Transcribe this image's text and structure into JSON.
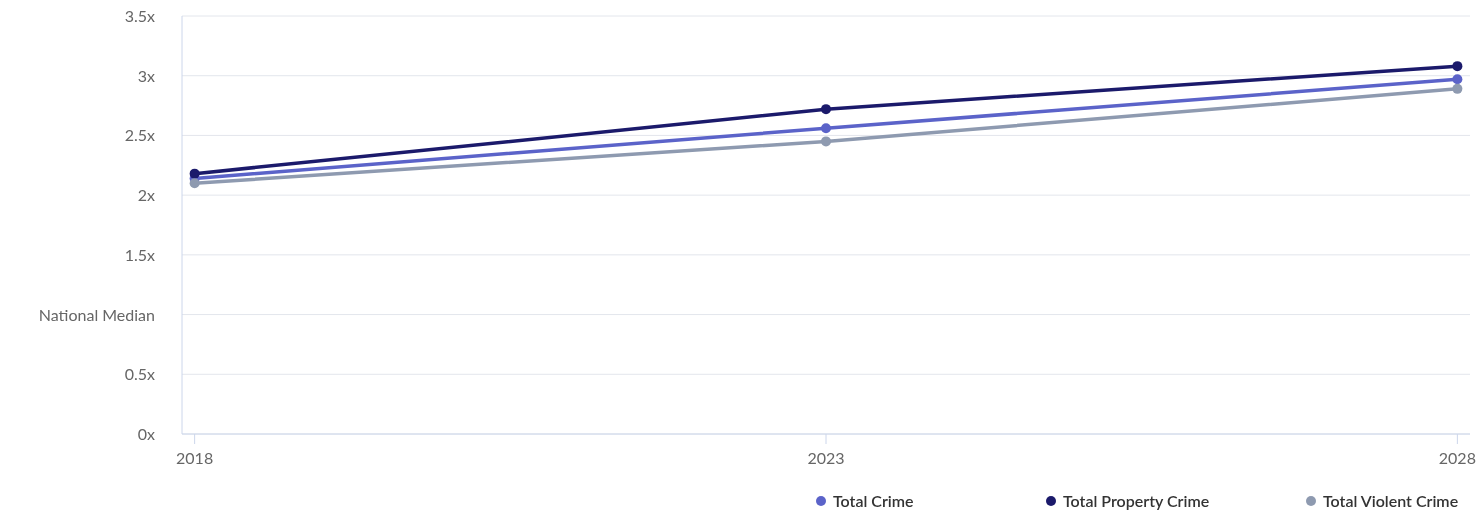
{
  "chart_data": {
    "type": "line",
    "x": [
      2018,
      2023,
      2028
    ],
    "xlim": [
      2017.9,
      2028.1
    ],
    "xticks": [
      2018,
      2023,
      2028
    ],
    "ylim": [
      0,
      3.5
    ],
    "yticks": [
      {
        "value": 0,
        "label": "0x"
      },
      {
        "value": 0.5,
        "label": "0.5x"
      },
      {
        "value": 1,
        "label": "National Median"
      },
      {
        "value": 1.5,
        "label": "1.5x"
      },
      {
        "value": 2,
        "label": "2x"
      },
      {
        "value": 2.5,
        "label": "2.5x"
      },
      {
        "value": 3,
        "label": "3x"
      },
      {
        "value": 3.5,
        "label": "3.5x"
      }
    ],
    "series": [
      {
        "name": "Total Crime",
        "color": "#5b63c9",
        "values": [
          2.14,
          2.56,
          2.97
        ]
      },
      {
        "name": "Total Property Crime",
        "color": "#1b1a6b",
        "values": [
          2.18,
          2.72,
          3.08
        ]
      },
      {
        "name": "Total Violent Crime",
        "color": "#8e9ab0",
        "values": [
          2.1,
          2.45,
          2.89
        ]
      }
    ],
    "grid": "y",
    "legend": "bottom right",
    "marker": "circle",
    "line_style": "solid"
  }
}
